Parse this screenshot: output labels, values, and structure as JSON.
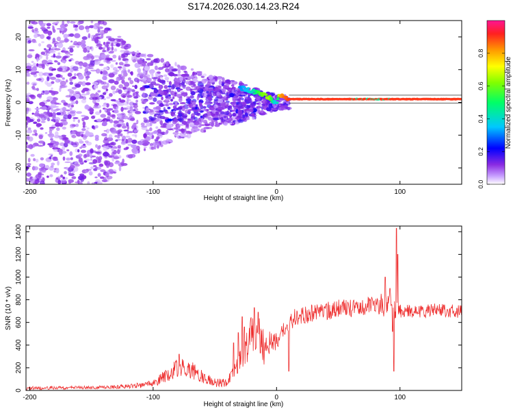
{
  "title": "S174.2026.030.14.23.R24",
  "chart_data": [
    {
      "type": "heatmap",
      "xlabel": "Height of straight line (km)",
      "ylabel": "Frequency (Hz)",
      "xlim": [
        -203,
        150
      ],
      "ylim": [
        -25,
        25
      ],
      "xticks": [
        -200,
        -100,
        0,
        100
      ],
      "yticks": [
        -20,
        -10,
        0,
        10,
        20
      ],
      "colorbar": {
        "label": "Normalized spectral amplitude",
        "range": [
          0,
          1
        ],
        "ticks": [
          0.0,
          0.2,
          0.4,
          0.6,
          0.8
        ]
      },
      "carrier_track": {
        "description_x": [
          -30,
          -20,
          -12,
          -6,
          -2,
          0,
          3,
          6,
          10,
          150
        ],
        "freq_y": [
          4.5,
          3.5,
          2.5,
          1.5,
          0.3,
          0.0,
          2.5,
          1.2,
          1.0,
          1.0
        ],
        "amplitude": [
          0.3,
          0.4,
          0.6,
          0.65,
          0.4,
          0.35,
          0.8,
          0.85,
          0.9,
          0.9
        ]
      },
      "noise_spread_hz": [
        {
          "x": -200,
          "half_width": 25
        },
        {
          "x": -140,
          "half_width": 25
        },
        {
          "x": -115,
          "half_width": 16
        },
        {
          "x": -60,
          "half_width": 9
        },
        {
          "x": -20,
          "half_width": 5
        },
        {
          "x": 0,
          "half_width": 2
        }
      ]
    },
    {
      "type": "line",
      "xlabel": "Height of straight line (km)",
      "ylabel": "SNR (10 * v/v)",
      "xlim": [
        -203,
        150
      ],
      "ylim": [
        0,
        1450
      ],
      "xticks": [
        -200,
        -100,
        0,
        100
      ],
      "yticks": [
        0,
        200,
        400,
        600,
        800,
        1000,
        1200,
        1400
      ],
      "series": [
        {
          "color": "#ee3030",
          "envelope_x": [
            -203,
            -150,
            -120,
            -100,
            -90,
            -80,
            -70,
            -60,
            -50,
            -40,
            -35,
            -30,
            -25,
            -20,
            -15,
            -10,
            -5,
            0,
            5,
            10,
            15,
            20,
            30,
            40,
            50,
            60,
            70,
            80,
            85,
            90,
            95,
            100,
            110,
            120,
            130,
            140,
            150
          ],
          "envelope_y": [
            20,
            25,
            35,
            60,
            130,
            200,
            190,
            120,
            70,
            70,
            150,
            260,
            350,
            480,
            500,
            370,
            440,
            430,
            530,
            580,
            650,
            660,
            680,
            700,
            720,
            730,
            740,
            750,
            760,
            750,
            720,
            700,
            700,
            700,
            710,
            700,
            700
          ],
          "noise_amp": [
            15,
            15,
            20,
            30,
            60,
            80,
            80,
            60,
            40,
            40,
            70,
            110,
            150,
            200,
            180,
            150,
            100,
            90,
            80,
            70,
            80,
            80,
            80,
            80,
            80,
            80,
            80,
            90,
            100,
            110,
            120,
            60,
            60,
            60,
            60,
            60,
            60
          ],
          "spikes": [
            {
              "x": -79,
              "y": 320
            },
            {
              "x": -35,
              "y": 420
            },
            {
              "x": -31,
              "y": 510
            },
            {
              "x": -28,
              "y": 650
            },
            {
              "x": -26,
              "y": 560
            },
            {
              "x": -18,
              "y": 730
            },
            {
              "x": -15,
              "y": 690
            },
            {
              "x": -13,
              "y": 330
            },
            {
              "x": 10,
              "y": 170
            },
            {
              "x": 88,
              "y": 1000
            },
            {
              "x": 92,
              "y": 900
            },
            {
              "x": 94,
              "y": 520
            },
            {
              "x": 95,
              "y": 170
            },
            {
              "x": 97,
              "y": 1430
            },
            {
              "x": 98,
              "y": 1200
            }
          ]
        }
      ]
    }
  ]
}
